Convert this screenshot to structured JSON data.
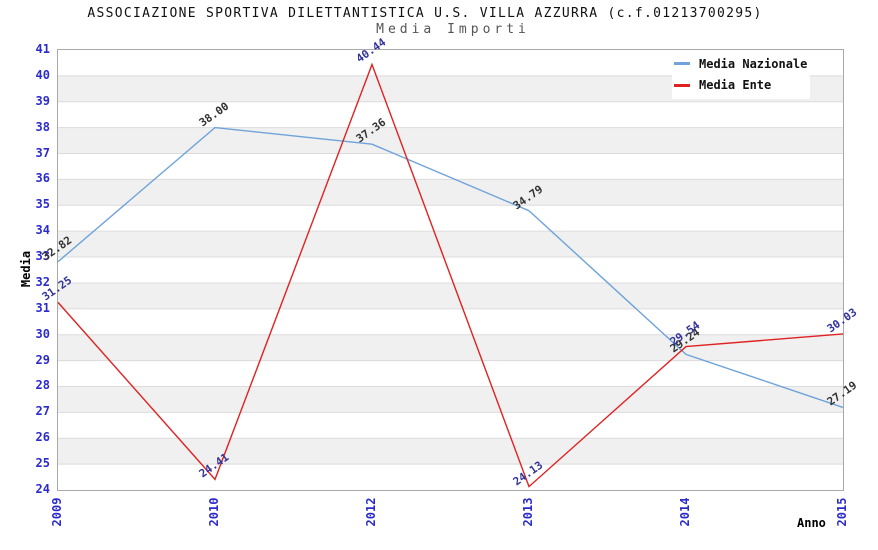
{
  "chart_data": {
    "type": "line",
    "title": "ASSOCIAZIONE SPORTIVA DILETTANTISTICA U.S. VILLA AZZURRA (c.f.01213700295)",
    "subtitle": "Media Importi",
    "xlabel": "Anno",
    "ylabel": "Media",
    "categories": [
      "2009",
      "2010",
      "2012",
      "2013",
      "2014",
      "2015"
    ],
    "series": [
      {
        "name": "Media Nazionale",
        "color": "#6fa3d9",
        "label_color": "#333333",
        "values": [
          32.82,
          38.0,
          37.36,
          34.79,
          29.24,
          27.19
        ]
      },
      {
        "name": "Media Ente",
        "color": "#e02222",
        "label_color": "#333399",
        "values": [
          31.25,
          24.41,
          40.44,
          24.13,
          29.54,
          30.03
        ]
      }
    ],
    "ylim": [
      24,
      41
    ],
    "ytick_step": 1,
    "grid": true,
    "banded_background": true,
    "legend_position": "top-right",
    "value_label_decimals": 2,
    "style": {
      "band_fill": "#f0f0f0",
      "grid_color": "#dcdcdc",
      "plot_border": "#a9a9a9",
      "tick_text_color": "#2b2bcc",
      "title_color": "#111111",
      "subtitle_color": "#555555",
      "axis_title_color": "#000000"
    }
  }
}
